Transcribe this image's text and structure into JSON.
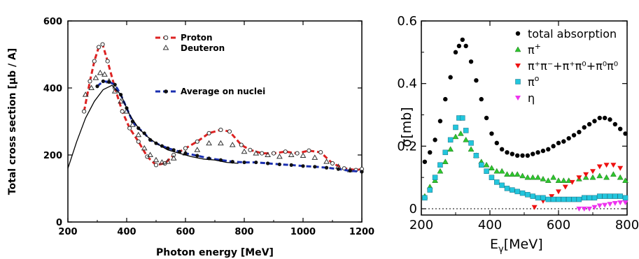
{
  "chart_data": [
    {
      "type": "line",
      "title": "",
      "xlabel": "Photon energy [MeV]",
      "ylabel": "Total cross section [µb / A]",
      "xlim": [
        200,
        1200
      ],
      "ylim": [
        0,
        600
      ],
      "x_ticks": [
        "200",
        "400",
        "600",
        "800",
        "1000",
        "1200"
      ],
      "y_ticks": [
        "0",
        "200",
        "400",
        "600"
      ],
      "x_tick_values": [
        200,
        400,
        600,
        800,
        1000,
        1200
      ],
      "y_tick_values": [
        0,
        200,
        400,
        600
      ],
      "legend_placement": "top-center",
      "series": [
        {
          "name": "Proton",
          "style": "dashed-open-circles",
          "color": "#dd2222",
          "x": [
            255,
            275,
            290,
            305,
            318,
            335,
            360,
            385,
            410,
            440,
            470,
            500,
            530,
            560,
            600,
            640,
            680,
            720,
            750,
            790,
            820,
            860,
            900,
            940,
            980,
            1020,
            1060,
            1100,
            1140,
            1180,
            1200
          ],
          "y": [
            330,
            420,
            480,
            522,
            530,
            480,
            400,
            330,
            280,
            240,
            195,
            170,
            175,
            200,
            220,
            240,
            265,
            275,
            270,
            230,
            215,
            205,
            205,
            210,
            205,
            213,
            208,
            175,
            160,
            155,
            158
          ]
        },
        {
          "name": "Deuteron",
          "style": "open-triangles",
          "color": "#333333",
          "x": [
            260,
            280,
            295,
            310,
            325,
            340,
            360,
            380,
            400,
            420,
            440,
            460,
            480,
            500,
            520,
            540,
            560,
            600,
            640,
            680,
            720,
            760,
            800,
            840,
            880,
            920,
            960,
            1000,
            1040,
            1080,
            1120,
            1160
          ],
          "y": [
            380,
            400,
            430,
            445,
            440,
            420,
            390,
            360,
            330,
            290,
            260,
            220,
            200,
            185,
            178,
            180,
            190,
            205,
            215,
            235,
            235,
            230,
            210,
            205,
            200,
            195,
            200,
            198,
            192,
            180,
            165,
            155
          ]
        },
        {
          "name": "Average on nuclei",
          "style": "dashed-filled-circles",
          "color": "#1a2fb0",
          "x": [
            300,
            320,
            340,
            360,
            380,
            400,
            420,
            440,
            460,
            480,
            500,
            520,
            540,
            560,
            580,
            600,
            640,
            680,
            720,
            760,
            800,
            840,
            880,
            920,
            960,
            1000,
            1040,
            1080,
            1120,
            1160,
            1200
          ],
          "y": [
            405,
            420,
            418,
            410,
            380,
            340,
            300,
            280,
            265,
            245,
            235,
            227,
            220,
            215,
            210,
            205,
            198,
            190,
            185,
            180,
            178,
            178,
            175,
            172,
            170,
            167,
            165,
            162,
            158,
            153,
            150
          ]
        },
        {
          "name": "",
          "style": "solid",
          "color": "#000000",
          "x": [
            200,
            230,
            260,
            290,
            320,
            350,
            380,
            410,
            440,
            470,
            500,
            540,
            580,
            620,
            660,
            700,
            740,
            780
          ],
          "y": [
            160,
            240,
            310,
            360,
            395,
            408,
            380,
            320,
            280,
            255,
            235,
            215,
            205,
            195,
            188,
            185,
            178,
            175
          ]
        }
      ]
    },
    {
      "type": "scatter",
      "title": "",
      "xlabel": "E",
      "xlabel_sub": "γ",
      "xlabel_rest": "[MeV]",
      "ylabel": "σ[mb]",
      "xlim": [
        200,
        800
      ],
      "ylim": [
        -0.02,
        0.6
      ],
      "x_ticks": [
        "200",
        "400",
        "600",
        "800"
      ],
      "y_ticks": [
        "0",
        "0.2",
        "0.4",
        "0.6"
      ],
      "x_tick_values": [
        200,
        400,
        600,
        800
      ],
      "y_tick_values": [
        0,
        0.2,
        0.4,
        0.6
      ],
      "zero_line": "dotted",
      "legend_placement": "top-right",
      "legend": [
        {
          "base": "total absorption",
          "sup": "",
          "marker": "circle",
          "color": "#000000"
        },
        {
          "base": "π",
          "sup": "+",
          "marker": "triangle-up",
          "color": "#2ec62e"
        },
        {
          "base": "π⁺π⁻+π⁺π⁰+π⁰π⁰",
          "sup": "",
          "marker": "triangle-down",
          "color": "#ee1111"
        },
        {
          "base": "π",
          "sup": "o",
          "marker": "square",
          "color": "#22c6dd"
        },
        {
          "base": "η",
          "sup": "",
          "marker": "triangle-down",
          "color": "#ee33ee"
        }
      ],
      "series": [
        {
          "marker": "circle",
          "color": "#000000",
          "x": [
            210,
            225,
            240,
            255,
            270,
            285,
            300,
            310,
            320,
            330,
            345,
            360,
            375,
            390,
            405,
            420,
            435,
            450,
            465,
            480,
            495,
            510,
            525,
            540,
            555,
            570,
            585,
            600,
            615,
            630,
            645,
            660,
            675,
            690,
            705,
            720,
            735,
            750,
            765,
            780,
            795
          ],
          "y": [
            0.15,
            0.18,
            0.22,
            0.28,
            0.35,
            0.42,
            0.5,
            0.52,
            0.54,
            0.52,
            0.47,
            0.41,
            0.35,
            0.29,
            0.24,
            0.21,
            0.19,
            0.18,
            0.175,
            0.17,
            0.17,
            0.17,
            0.175,
            0.18,
            0.185,
            0.19,
            0.2,
            0.21,
            0.215,
            0.225,
            0.235,
            0.245,
            0.26,
            0.27,
            0.28,
            0.29,
            0.29,
            0.285,
            0.27,
            0.255,
            0.24
          ]
        },
        {
          "marker": "triangle-up",
          "color": "#2ec62e",
          "x": [
            210,
            225,
            240,
            255,
            270,
            285,
            300,
            315,
            330,
            345,
            360,
            375,
            390,
            405,
            420,
            435,
            450,
            465,
            480,
            495,
            510,
            525,
            540,
            555,
            570,
            585,
            600,
            615,
            630,
            660,
            680,
            700,
            720,
            740,
            760,
            780,
            795
          ],
          "y": [
            0.04,
            0.07,
            0.09,
            0.12,
            0.15,
            0.19,
            0.23,
            0.24,
            0.22,
            0.19,
            0.17,
            0.15,
            0.14,
            0.13,
            0.12,
            0.12,
            0.11,
            0.11,
            0.11,
            0.105,
            0.1,
            0.1,
            0.1,
            0.095,
            0.09,
            0.1,
            0.09,
            0.09,
            0.09,
            0.095,
            0.1,
            0.1,
            0.105,
            0.1,
            0.11,
            0.1,
            0.09
          ]
        },
        {
          "marker": "triangle-down",
          "color": "#ee1111",
          "x": [
            530,
            555,
            580,
            600,
            620,
            640,
            660,
            680,
            700,
            720,
            740,
            760,
            780
          ],
          "y": [
            0.005,
            0.025,
            0.04,
            0.055,
            0.07,
            0.085,
            0.1,
            0.11,
            0.12,
            0.135,
            0.14,
            0.14,
            0.13
          ]
        },
        {
          "marker": "square",
          "color": "#22c6dd",
          "x": [
            210,
            225,
            240,
            255,
            270,
            285,
            300,
            310,
            320,
            330,
            345,
            360,
            375,
            390,
            405,
            420,
            435,
            450,
            465,
            480,
            495,
            510,
            525,
            540,
            555,
            570,
            585,
            600,
            615,
            630,
            645,
            660,
            675,
            690,
            705,
            720,
            735,
            750,
            765,
            780,
            795
          ],
          "y": [
            0.035,
            0.06,
            0.1,
            0.14,
            0.18,
            0.22,
            0.26,
            0.29,
            0.29,
            0.25,
            0.21,
            0.17,
            0.14,
            0.12,
            0.1,
            0.085,
            0.075,
            0.065,
            0.06,
            0.055,
            0.05,
            0.045,
            0.04,
            0.035,
            0.035,
            0.03,
            0.03,
            0.03,
            0.03,
            0.03,
            0.03,
            0.03,
            0.035,
            0.035,
            0.035,
            0.04,
            0.04,
            0.04,
            0.04,
            0.04,
            0.035
          ]
        },
        {
          "marker": "triangle-down",
          "color": "#ee33ee",
          "x": [
            660,
            675,
            690,
            705,
            720,
            735,
            750,
            765,
            780,
            795
          ],
          "y": [
            0.0,
            0.0,
            0.0,
            0.005,
            0.01,
            0.012,
            0.015,
            0.018,
            0.02,
            0.02
          ]
        }
      ]
    }
  ]
}
